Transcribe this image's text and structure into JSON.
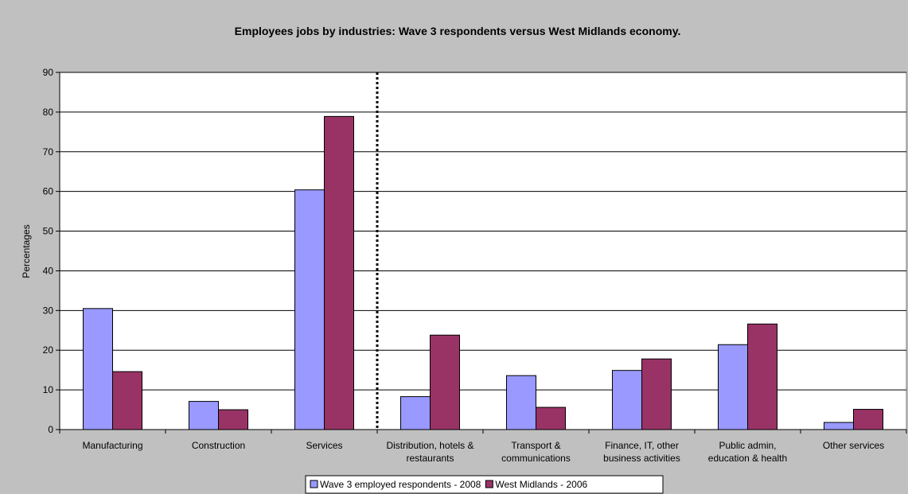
{
  "chart_data": {
    "type": "bar",
    "title": "Employees jobs by industries: Wave 3 respondents versus West Midlands economy.",
    "ylabel": "Percentages",
    "xlabel": "",
    "ylim": [
      0,
      90
    ],
    "yticks": [
      0,
      10,
      20,
      30,
      40,
      50,
      60,
      70,
      80,
      90
    ],
    "grid": true,
    "legend_position": "bottom",
    "categories": [
      [
        "Manufacturing"
      ],
      [
        "Construction"
      ],
      [
        "Services"
      ],
      [
        "Distribution, hotels &",
        "restaurants"
      ],
      [
        "Transport &",
        "communications"
      ],
      [
        "Finance, IT, other",
        "business activities"
      ],
      [
        "Public admin,",
        "education & health"
      ],
      [
        "Other services"
      ]
    ],
    "series": [
      {
        "name": "Wave 3 employed respondents - 2008",
        "color": "#9999ff",
        "values": [
          30.5,
          7.1,
          60.4,
          8.3,
          13.6,
          14.9,
          21.4,
          1.8
        ]
      },
      {
        "name": "West Midlands - 2006",
        "color": "#993366",
        "values": [
          14.6,
          5.0,
          78.9,
          23.8,
          5.6,
          17.8,
          26.6,
          5.1
        ]
      }
    ],
    "divider_after_category": 2
  }
}
